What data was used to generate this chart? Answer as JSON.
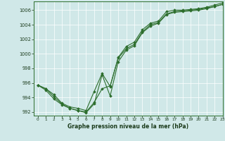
{
  "xlabel": "Graphe pression niveau de la mer (hPa)",
  "xlim": [
    -0.5,
    23
  ],
  "ylim": [
    991.5,
    1007.2
  ],
  "yticks": [
    992,
    994,
    996,
    998,
    1000,
    1002,
    1004,
    1006
  ],
  "xticks": [
    0,
    1,
    2,
    3,
    4,
    5,
    6,
    7,
    8,
    9,
    10,
    11,
    12,
    13,
    14,
    15,
    16,
    17,
    18,
    19,
    20,
    21,
    22,
    23
  ],
  "background_color": "#d0e8e8",
  "grid_color": "#b0d0d0",
  "line_color": "#2d6e2d",
  "line1": [
    995.7,
    995.2,
    994.4,
    993.2,
    992.7,
    992.5,
    992.2,
    994.8,
    997.3,
    995.5,
    999.5,
    1001.0,
    1001.6,
    1003.3,
    1004.2,
    1004.5,
    1005.8,
    1006.0,
    1006.0,
    1006.1,
    1006.2,
    1006.4,
    1006.7,
    1007.0
  ],
  "line2": [
    995.7,
    995.2,
    994.1,
    993.1,
    992.5,
    992.2,
    992.0,
    993.3,
    995.2,
    995.6,
    999.4,
    1000.7,
    1001.3,
    1003.0,
    1004.0,
    1004.3,
    1005.5,
    1005.8,
    1005.9,
    1006.0,
    1006.1,
    1006.3,
    1006.5,
    1006.8
  ],
  "line3": [
    995.7,
    995.0,
    993.8,
    993.0,
    992.5,
    992.2,
    991.9,
    993.1,
    997.1,
    994.2,
    998.9,
    1000.5,
    1001.1,
    1002.9,
    1003.8,
    1004.2,
    1005.4,
    1005.7,
    1005.8,
    1005.9,
    1006.0,
    1006.2,
    1006.5,
    1006.8
  ]
}
